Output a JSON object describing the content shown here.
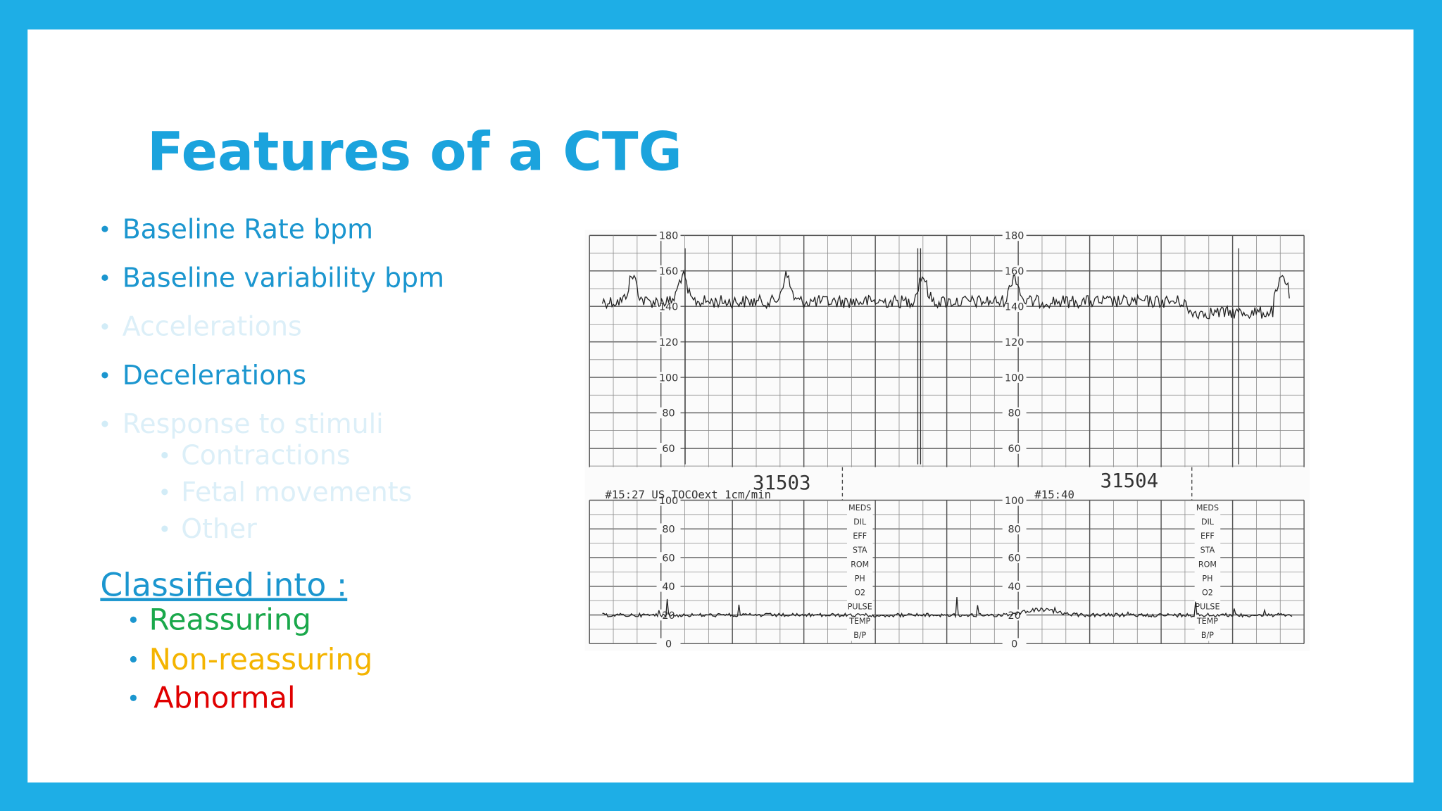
{
  "title": "Features of a CTG",
  "bullets": [
    "Baseline Rate bpm",
    "Baseline variability bpm",
    "Accelerations",
    "Decelerations",
    "Response to stimuli"
  ],
  "sub_bullets": [
    "Contractions",
    "Fetal movements",
    "Other"
  ],
  "classification": {
    "heading": "Classified into :",
    "items": [
      "Reassuring",
      "Non-reassuring",
      "Abnormal"
    ]
  },
  "ctg": {
    "fhr_labels": [
      "180",
      "160",
      "140",
      "120",
      "100",
      "80",
      "60"
    ],
    "toco_labels": [
      "100",
      "80",
      "60",
      "40",
      "20",
      "0"
    ],
    "strip_numbers": [
      "31503",
      "31504"
    ],
    "header_texts": [
      "#15:27 US TOCOext 1cm/min",
      "#15:40"
    ],
    "side_labels": [
      "MEDS",
      "DIL",
      "EFF",
      "STA",
      "ROM",
      "PH",
      "O2",
      "PULSE",
      "TEMP",
      "B/P"
    ]
  }
}
